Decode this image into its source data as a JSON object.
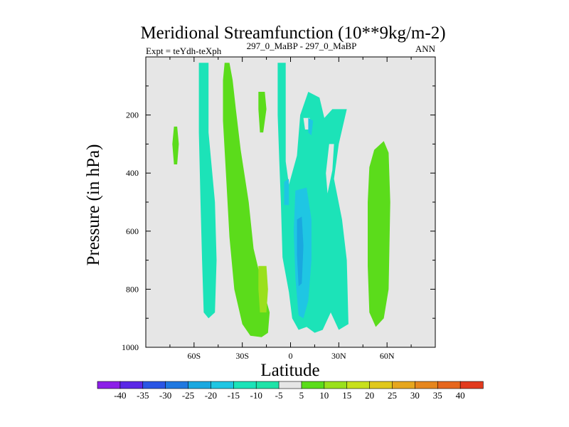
{
  "chart_data": {
    "type": "contour",
    "title": "Meridional Streamfunction (10**9kg/m-2)",
    "left_label": "Expt = teYdh-teXph",
    "center_label": "297_0_MaBP - 297_0_MaBP",
    "right_label": "ANN",
    "xlabel": "Latitude",
    "ylabel": "Pressure (in hPa)",
    "xlim": [
      -90,
      90
    ],
    "ylim": [
      1000,
      0
    ],
    "x_ticks": [
      {
        "value": -60,
        "label": "60S"
      },
      {
        "value": -30,
        "label": "30S"
      },
      {
        "value": 0,
        "label": "0"
      },
      {
        "value": 30,
        "label": "30N"
      },
      {
        "value": 60,
        "label": "60N"
      }
    ],
    "y_ticks": [
      {
        "value": 200,
        "label": "200"
      },
      {
        "value": 400,
        "label": "400"
      },
      {
        "value": 600,
        "label": "600"
      },
      {
        "value": 800,
        "label": "800"
      },
      {
        "value": 1000,
        "label": "1000"
      }
    ],
    "background_color": "#e6e6e6",
    "regions": [
      {
        "name": "negative-band-60S",
        "level": -10,
        "color": "#1ce3b8",
        "polygon": [
          [
            -57,
            20
          ],
          [
            -51,
            20
          ],
          [
            -51,
            260
          ],
          [
            -47,
            500
          ],
          [
            -46,
            700
          ],
          [
            -47,
            880
          ],
          [
            -51,
            900
          ],
          [
            -54,
            880
          ],
          [
            -55,
            700
          ],
          [
            -56,
            500
          ],
          [
            -57,
            260
          ]
        ]
      },
      {
        "name": "positive-blob-75S",
        "level": 5,
        "color": "#5bdc1b",
        "polygon": [
          [
            -72.5,
            240
          ],
          [
            -70.5,
            240
          ],
          [
            -69.5,
            300
          ],
          [
            -70.5,
            370
          ],
          [
            -72.5,
            370
          ],
          [
            -73.5,
            300
          ]
        ]
      },
      {
        "name": "positive-band-30S",
        "level": 5,
        "color": "#5bdc1b",
        "polygon": [
          [
            -41,
            20
          ],
          [
            -38,
            20
          ],
          [
            -36,
            80
          ],
          [
            -34,
            180
          ],
          [
            -31,
            320
          ],
          [
            -26,
            500
          ],
          [
            -23,
            660
          ],
          [
            -17,
            800
          ],
          [
            -13,
            880
          ],
          [
            -14,
            950
          ],
          [
            -18,
            965
          ],
          [
            -25,
            960
          ],
          [
            -30,
            920
          ],
          [
            -35,
            800
          ],
          [
            -38,
            620
          ],
          [
            -40,
            420
          ],
          [
            -42,
            220
          ],
          [
            -42,
            80
          ]
        ]
      },
      {
        "name": "positive-blob-20S",
        "level": 5,
        "color": "#5bdc1b",
        "polygon": [
          [
            -20,
            120
          ],
          [
            -16,
            120
          ],
          [
            -15,
            180
          ],
          [
            -17,
            260
          ],
          [
            -19,
            260
          ],
          [
            -20,
            180
          ]
        ]
      },
      {
        "name": "level-10-core-15S",
        "level": 10,
        "color": "#9ae01c",
        "polygon": [
          [
            -20,
            720
          ],
          [
            -15,
            720
          ],
          [
            -14,
            800
          ],
          [
            -15,
            880
          ],
          [
            -19,
            880
          ],
          [
            -20,
            800
          ]
        ]
      },
      {
        "name": "negative-eq-column",
        "level": -10,
        "color": "#1ce3b8",
        "polygon": [
          [
            -8,
            20
          ],
          [
            -3,
            20
          ],
          [
            -3,
            200
          ],
          [
            -3,
            360
          ],
          [
            -1,
            440
          ],
          [
            4,
            340
          ],
          [
            6,
            200
          ],
          [
            11,
            120
          ],
          [
            18,
            140
          ],
          [
            21,
            210
          ],
          [
            26,
            180
          ],
          [
            35,
            180
          ],
          [
            30,
            300
          ],
          [
            27,
            420
          ],
          [
            32,
            560
          ],
          [
            35,
            700
          ],
          [
            36,
            920
          ],
          [
            30,
            940
          ],
          [
            25,
            880
          ],
          [
            20,
            940
          ],
          [
            15,
            950
          ],
          [
            10,
            930
          ],
          [
            5,
            940
          ],
          [
            1,
            900
          ],
          [
            -1,
            810
          ],
          [
            -5,
            690
          ],
          [
            -6,
            500
          ],
          [
            -7,
            360
          ],
          [
            -8,
            200
          ]
        ]
      },
      {
        "name": "gray-inner-gap-25N",
        "level": 0,
        "color": "#e6e6e6",
        "polygon": [
          [
            24,
            300
          ],
          [
            27,
            300
          ],
          [
            26,
            390
          ],
          [
            23,
            470
          ],
          [
            22,
            400
          ]
        ]
      },
      {
        "name": "gray-notch-10N",
        "level": 0,
        "color": "#e6e6e6",
        "polygon": [
          [
            8,
            210
          ],
          [
            12,
            210
          ],
          [
            11,
            250
          ],
          [
            9,
            250
          ]
        ]
      },
      {
        "name": "level-15-core-eq",
        "level": -15,
        "color": "#1fc6e3",
        "polygon": [
          [
            3,
            460
          ],
          [
            10,
            450
          ],
          [
            13,
            560
          ],
          [
            13,
            700
          ],
          [
            11,
            840
          ],
          [
            8,
            900
          ],
          [
            5,
            890
          ],
          [
            3,
            760
          ],
          [
            2,
            600
          ]
        ]
      },
      {
        "name": "level-15-speck-eq",
        "level": -15,
        "color": "#1fc6e3",
        "polygon": [
          [
            -4,
            430
          ],
          [
            -1,
            420
          ],
          [
            -1,
            510
          ],
          [
            -4,
            510
          ]
        ]
      },
      {
        "name": "level-15-speck-12N",
        "level": -15,
        "color": "#1fc6e3",
        "polygon": [
          [
            11,
            210
          ],
          [
            14,
            220
          ],
          [
            13,
            270
          ],
          [
            11,
            260
          ]
        ]
      },
      {
        "name": "level-20-core-eq",
        "level": -20,
        "color": "#1aa8e0",
        "polygon": [
          [
            4,
            560
          ],
          [
            7,
            550
          ],
          [
            8,
            650
          ],
          [
            7,
            780
          ],
          [
            5,
            790
          ],
          [
            4,
            680
          ]
        ]
      },
      {
        "name": "positive-band-60N",
        "level": 5,
        "color": "#5bdc1b",
        "polygon": [
          [
            52,
            320
          ],
          [
            58,
            290
          ],
          [
            61,
            330
          ],
          [
            62,
            500
          ],
          [
            61,
            800
          ],
          [
            58,
            900
          ],
          [
            53,
            930
          ],
          [
            49,
            880
          ],
          [
            48,
            720
          ],
          [
            48,
            500
          ],
          [
            49,
            380
          ]
        ]
      }
    ],
    "colorbar": {
      "labels": [
        "-40",
        "-35",
        "-30",
        "-25",
        "-20",
        "-15",
        "-10",
        "-5",
        "5",
        "10",
        "15",
        "20",
        "25",
        "30",
        "35",
        "40"
      ],
      "colors": [
        "#8c1fe8",
        "#5a28e6",
        "#2a55e4",
        "#1f78e0",
        "#1aa8e0",
        "#1fc6e3",
        "#1ce3b8",
        "#1fe3a8",
        "#e6e6e6",
        "#5bdc1b",
        "#9ae01c",
        "#c8e01c",
        "#e0c81c",
        "#e6a61e",
        "#e6861e",
        "#e6661e",
        "#e23a1e"
      ]
    }
  }
}
